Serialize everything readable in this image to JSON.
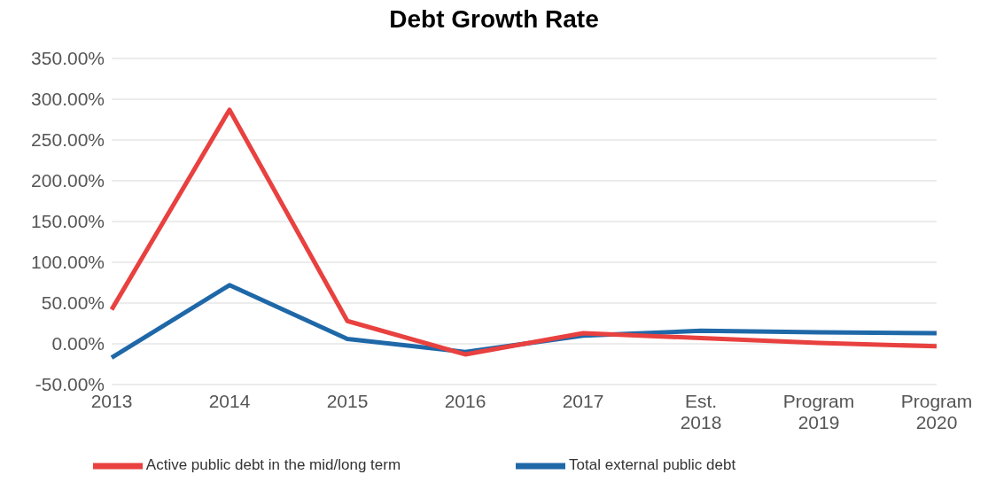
{
  "chart_data": {
    "type": "line",
    "title": "Debt Growth Rate",
    "categories": [
      "2013",
      "2014",
      "2015",
      "2016",
      "2017",
      "Est. 2018",
      "Program 2019",
      "Program 2020"
    ],
    "series": [
      {
        "name": "Total external public debt",
        "color": "#1f68a8",
        "values": [
          -17,
          72,
          6,
          -10,
          10,
          16,
          14,
          13
        ]
      },
      {
        "name": "Active public debt in the mid/long term",
        "color": "#e8413f",
        "values": [
          42,
          287,
          28,
          -13,
          13,
          7,
          1,
          -3
        ]
      }
    ],
    "ylim": [
      -50,
      350
    ],
    "yticks": [
      {
        "value": -50,
        "label": "-50.00%"
      },
      {
        "value": 0,
        "label": "0.00%"
      },
      {
        "value": 50,
        "label": "50.00%"
      },
      {
        "value": 100,
        "label": "100.00%"
      },
      {
        "value": 150,
        "label": "150.00%"
      },
      {
        "value": 200,
        "label": "200.00%"
      },
      {
        "value": 250,
        "label": "250.00%"
      },
      {
        "value": 300,
        "label": "300.00%"
      },
      {
        "value": 350,
        "label": "350.00%"
      }
    ],
    "grid": "y",
    "legend": "bottom",
    "marker": "none",
    "line_style": "solid"
  }
}
